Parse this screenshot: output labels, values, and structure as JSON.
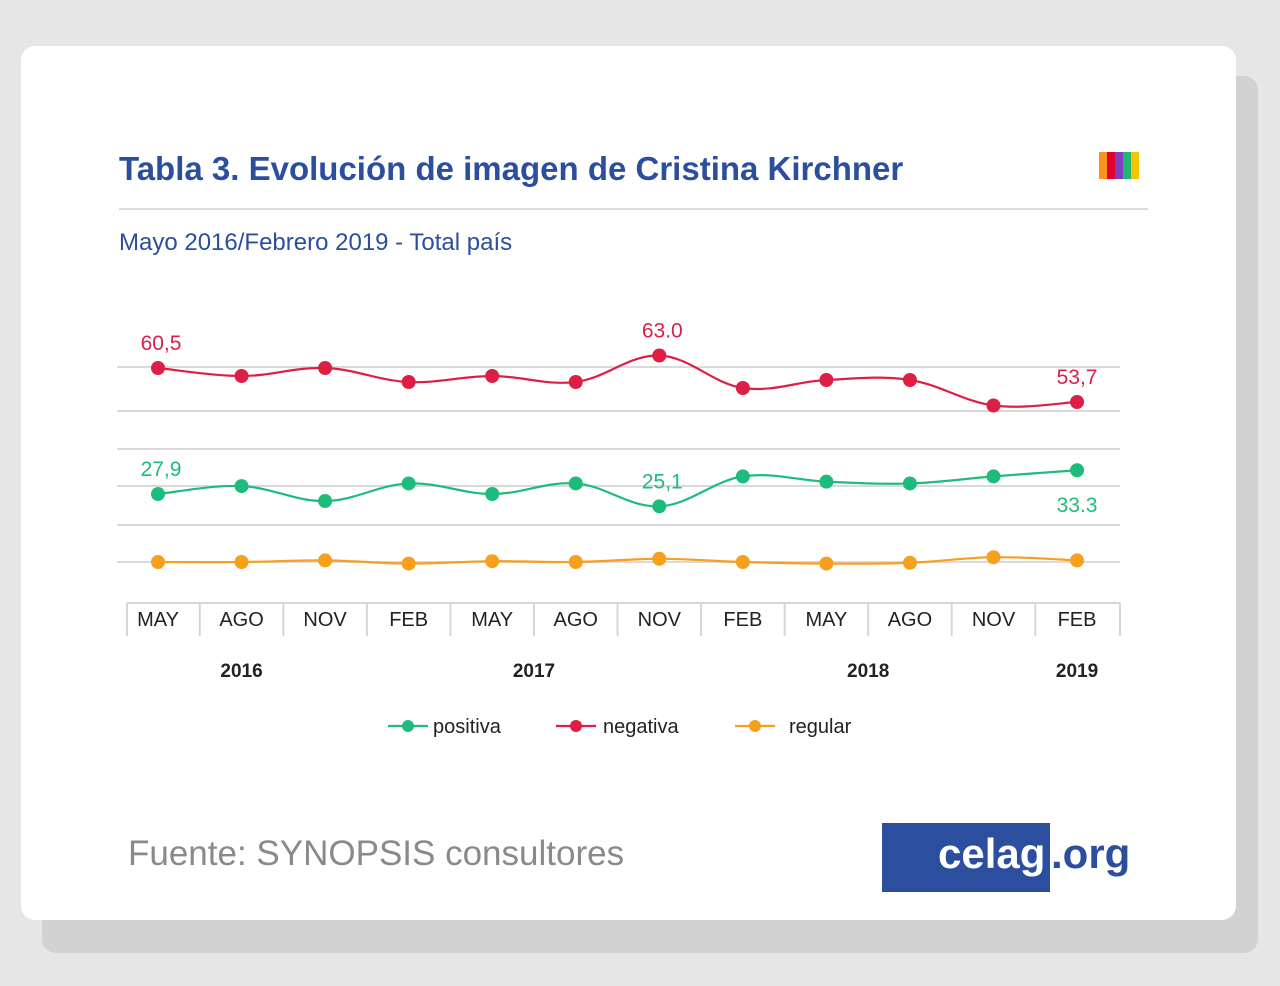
{
  "card": {
    "title": "Tabla 3. Evolución de imagen de Cristina Kirchner",
    "subtitle": "Mayo 2016/Febrero 2019 - Total país",
    "source": "Fuente: SYNOPSIS consultores",
    "logo": {
      "main": "celag",
      "ext": ".org"
    },
    "palette_colors": [
      "#f7931e",
      "#e5002b",
      "#7f3fbf",
      "#22b573",
      "#f5c400"
    ]
  },
  "chart_data": {
    "type": "line",
    "x": [
      "MAY",
      "AGO",
      "NOV",
      "FEB",
      "MAY",
      "AGO",
      "NOV",
      "FEB",
      "MAY",
      "AGO",
      "NOV",
      "FEB"
    ],
    "years": [
      {
        "label": "2016",
        "from": 0,
        "to": 2
      },
      {
        "label": "2017",
        "from": 3,
        "to": 6
      },
      {
        "label": "2018",
        "from": 7,
        "to": 10
      },
      {
        "label": "2019",
        "from": 11,
        "to": 11
      }
    ],
    "ylim": [
      0,
      70
    ],
    "grid": true,
    "legend": "bottom",
    "series": [
      {
        "name": "positiva",
        "color": "#1ebc7c",
        "values": [
          27.9,
          29.7,
          26.3,
          30.3,
          27.9,
          30.3,
          25.1,
          31.9,
          30.7,
          30.3,
          31.9,
          33.3
        ],
        "labels": [
          {
            "index": 0,
            "text": "27,9"
          },
          {
            "index": 6,
            "text": "25,1"
          },
          {
            "index": 11,
            "text": "33.3"
          }
        ]
      },
      {
        "name": "negativa",
        "color": "#de1f45",
        "values": [
          60.5,
          58.9,
          60.5,
          57.7,
          58.9,
          57.7,
          63.0,
          56.5,
          58.1,
          58.1,
          53.0,
          53.7
        ],
        "labels": [
          {
            "index": 0,
            "text": "60,5"
          },
          {
            "index": 6,
            "text": "63.0"
          },
          {
            "index": 11,
            "text": "53,7"
          }
        ]
      },
      {
        "name": "regular",
        "color": "#f7a01d",
        "values": [
          9.5,
          9.5,
          9.9,
          9.1,
          9.7,
          9.5,
          10.3,
          9.5,
          9.1,
          9.3,
          10.7,
          9.9
        ],
        "labels": []
      }
    ]
  }
}
